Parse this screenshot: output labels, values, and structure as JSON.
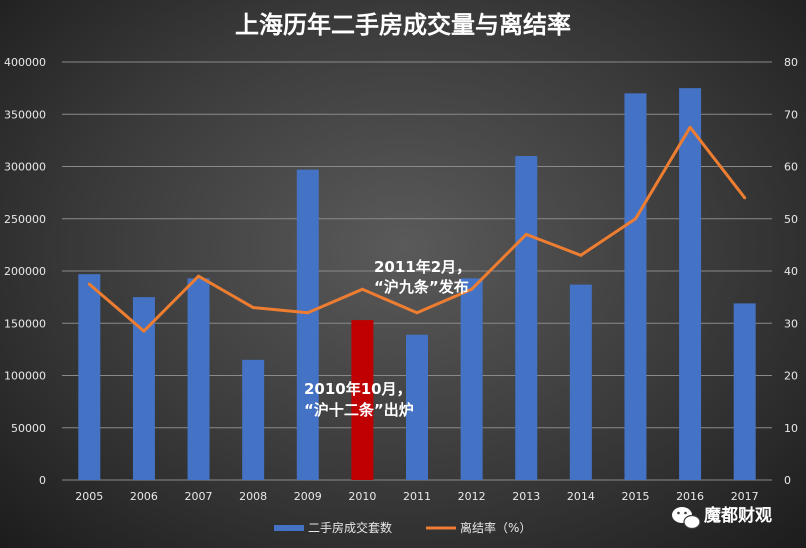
{
  "chart_data": {
    "type": "bar",
    "title": "上海历年二手房成交量与离结率",
    "categories": [
      "2005",
      "2006",
      "2007",
      "2008",
      "2009",
      "2010",
      "2011",
      "2012",
      "2013",
      "2014",
      "2015",
      "2016",
      "2017"
    ],
    "series": [
      {
        "name": "二手房成交套数",
        "type": "bar",
        "axis": "left",
        "color": "#4472c4",
        "highlight": {
          "index": 5,
          "color": "#c00000"
        },
        "values": [
          197000,
          175000,
          193000,
          115000,
          297000,
          153000,
          139000,
          193000,
          310000,
          187000,
          370000,
          375000,
          169000
        ]
      },
      {
        "name": "离结率（%）",
        "type": "line",
        "axis": "right",
        "color": "#ed7d31",
        "values": [
          37.5,
          28.5,
          39,
          33,
          32,
          36.5,
          32,
          36.5,
          47,
          43,
          50,
          67.5,
          54
        ]
      }
    ],
    "y_left": {
      "min": 0,
      "max": 400000,
      "ticks": [
        0,
        50000,
        100000,
        150000,
        200000,
        250000,
        300000,
        350000,
        400000
      ]
    },
    "y_right": {
      "min": 0,
      "max": 80,
      "ticks": [
        0,
        10,
        20,
        30,
        40,
        50,
        60,
        70,
        80
      ]
    },
    "grid": true,
    "legend_position": "bottom",
    "annotations": [
      {
        "lines": [
          "2011年2月，",
          "“沪九条”发布"
        ]
      },
      {
        "lines": [
          "2010年10月，",
          "“沪十二条”出炉"
        ]
      }
    ]
  },
  "watermark": {
    "text": "魔都财观",
    "icon": "wechat-icon"
  }
}
